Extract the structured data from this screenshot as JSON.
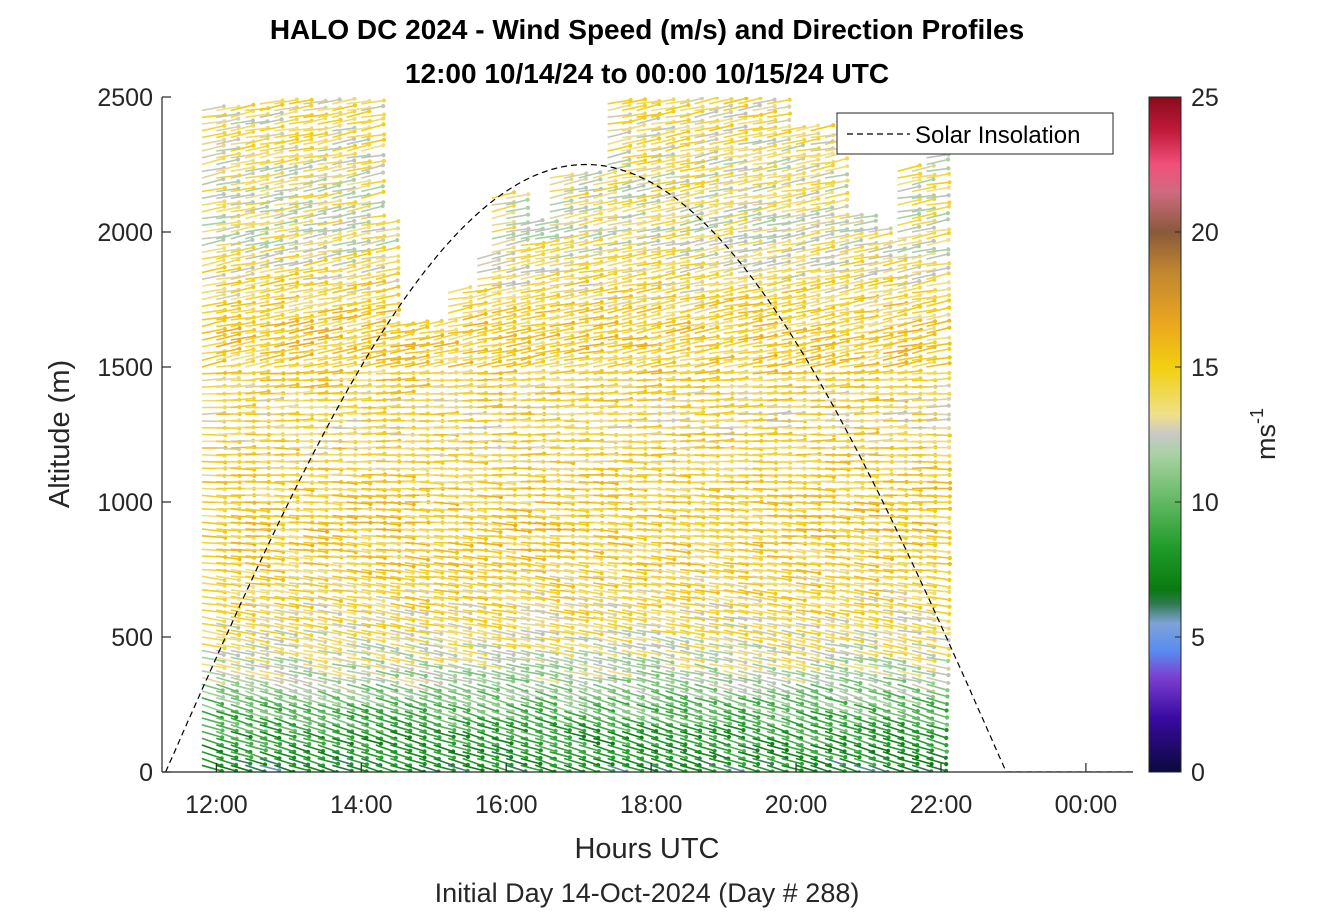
{
  "chart_data": {
    "type": "wind-barb-profile",
    "title_line1": "HALO DC 2024 - Wind Speed (m/s) and Direction Profiles",
    "title_line2": "12:00 10/14/24 to 00:00 10/15/24  UTC",
    "xlabel": "Hours UTC",
    "ylabel": "Altitude (m)",
    "caption": "Initial Day 14-Oct-2024 (Day # 288)",
    "x_ticks": [
      "12:00",
      "14:00",
      "16:00",
      "18:00",
      "20:00",
      "22:00",
      "00:00"
    ],
    "x_tick_hours": [
      12,
      14,
      16,
      18,
      20,
      22,
      24
    ],
    "xlim_hours": [
      11.25,
      24.65
    ],
    "y_ticks": [
      0,
      500,
      1000,
      1500,
      2000,
      2500
    ],
    "ylim": [
      0,
      2500
    ],
    "colorbar": {
      "label": "ms",
      "label_superscript": "-1",
      "ticks": [
        0,
        5,
        10,
        15,
        20,
        25
      ],
      "range": [
        0,
        25
      ]
    },
    "legend": {
      "entry": "Solar Insolation",
      "placement": "top-right",
      "style": "dashed"
    },
    "solar_insolation": {
      "start_hour": 11.3,
      "end_hour": 22.9,
      "peak_hour": 17.1,
      "peak_altitude": 2250
    },
    "profiles": {
      "start_hour": 11.8,
      "end_hour": 21.8,
      "profile_interval_hours": 0.2,
      "level_interval_m": 25,
      "min_altitude_m": 25,
      "profile_tops_m": [
        [
          11.8,
          2460
        ],
        [
          12.5,
          2490
        ],
        [
          13.1,
          2490
        ],
        [
          14.1,
          2240
        ],
        [
          14.2,
          2040
        ],
        [
          14.4,
          1670
        ],
        [
          15.1,
          1670
        ],
        [
          15.2,
          1790
        ],
        [
          15.5,
          1910
        ],
        [
          15.8,
          2140
        ],
        [
          16.2,
          2040
        ],
        [
          16.5,
          2200
        ],
        [
          17.3,
          2490
        ],
        [
          19.5,
          2480
        ],
        [
          19.7,
          2390
        ],
        [
          20.4,
          2360
        ],
        [
          20.5,
          2070
        ],
        [
          20.9,
          2010
        ],
        [
          21.2,
          1970
        ],
        [
          21.4,
          2240
        ],
        [
          21.8,
          2290
        ]
      ],
      "speed_layers_m_s": [
        [
          0,
          7
        ],
        [
          150,
          8.5
        ],
        [
          250,
          10
        ],
        [
          400,
          12.5
        ],
        [
          600,
          14
        ],
        [
          900,
          15
        ],
        [
          1300,
          14
        ],
        [
          1600,
          15
        ],
        [
          2000,
          13
        ],
        [
          2500,
          14
        ]
      ],
      "direction_note": "barbs point east-southeast at low levels, east-northeast aloft"
    }
  }
}
